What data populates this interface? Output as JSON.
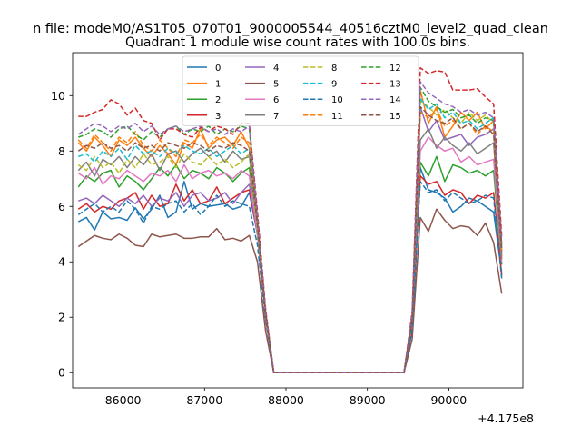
{
  "header": {
    "suptitle": "n file: modeM0/AS1T05_070T01_9000005544_40516cztM0_level2_quad_clean",
    "title": "Quadrant 1 module wise count rates with 100.0s bins."
  },
  "chart_data": {
    "type": "line",
    "title": "Quadrant 1 module wise count rates with 100.0s bins.",
    "xlabel": "",
    "ylabel": "",
    "x_offset_label": "+4.175e8",
    "xlim": [
      85380,
      90910
    ],
    "ylim": [
      -0.55,
      11.55
    ],
    "x_ticks": [
      86000,
      87000,
      88000,
      89000,
      90000
    ],
    "x_tick_labels": [
      "86000",
      "87000",
      "88000",
      "89000",
      "90000"
    ],
    "y_ticks": [
      0,
      2,
      4,
      6,
      8,
      10
    ],
    "y_tick_labels": [
      "0",
      "2",
      "4",
      "6",
      "8",
      "10"
    ],
    "grid": false,
    "legend": {
      "position": "top-center",
      "columns": 4
    },
    "x": [
      85450,
      85550,
      85650,
      85750,
      85850,
      85950,
      86050,
      86150,
      86250,
      86350,
      86450,
      86550,
      86650,
      86750,
      86850,
      86950,
      87050,
      87150,
      87250,
      87350,
      87450,
      87550,
      87650,
      87750,
      87850,
      87950,
      88050,
      88150,
      88250,
      88350,
      88450,
      88550,
      88650,
      88750,
      88850,
      88950,
      89050,
      89150,
      89250,
      89350,
      89450,
      89550,
      89650,
      89750,
      89850,
      89950,
      90050,
      90150,
      90250,
      90350,
      90450,
      90550,
      90650
    ],
    "series": [
      {
        "name": "0",
        "color": "#1f77b4",
        "dash": "solid",
        "values": [
          5.45,
          5.6,
          5.15,
          5.8,
          5.55,
          5.6,
          5.5,
          5.95,
          5.55,
          5.9,
          6.4,
          5.6,
          5.8,
          6.9,
          5.9,
          6.1,
          6.0,
          6.05,
          6.1,
          5.9,
          6.0,
          6.5,
          5.0,
          2.0,
          0.0,
          0,
          0,
          0,
          0,
          0,
          0,
          0,
          0,
          0,
          0,
          0,
          0,
          0,
          0,
          0,
          0,
          1.5,
          7.4,
          6.6,
          6.5,
          6.3,
          5.8,
          6.0,
          6.3,
          6.2,
          6.0,
          5.8,
          3.6
        ]
      },
      {
        "name": "1",
        "color": "#ff7f0e",
        "dash": "solid",
        "values": [
          8.3,
          8.0,
          8.5,
          8.2,
          7.8,
          8.4,
          8.2,
          8.5,
          8.1,
          7.8,
          8.2,
          7.9,
          7.5,
          8.3,
          8.1,
          8.8,
          8.1,
          8.4,
          8.5,
          8.2,
          8.7,
          8.1,
          5.0,
          2.0,
          0.0,
          0,
          0,
          0,
          0,
          0,
          0,
          0,
          0,
          0,
          0,
          0,
          0,
          0,
          0,
          0,
          0,
          2.0,
          10.2,
          9.0,
          9.6,
          8.5,
          8.9,
          9.4,
          9.1,
          9.4,
          8.8,
          9.1,
          4.2
        ]
      },
      {
        "name": "2",
        "color": "#2ca02c",
        "dash": "solid",
        "values": [
          6.7,
          7.1,
          6.9,
          7.2,
          7.3,
          6.7,
          7.1,
          6.9,
          6.6,
          7.0,
          7.4,
          7.1,
          7.5,
          7.0,
          7.3,
          7.2,
          7.0,
          7.4,
          7.2,
          6.9,
          7.2,
          7.4,
          5.0,
          2.0,
          0.0,
          0,
          0,
          0,
          0,
          0,
          0,
          0,
          0,
          0,
          0,
          0,
          0,
          0,
          0,
          0,
          0,
          1.8,
          7.6,
          7.1,
          7.8,
          6.9,
          7.5,
          7.4,
          7.2,
          7.3,
          7.1,
          7.3,
          3.9
        ]
      },
      {
        "name": "3",
        "color": "#d62728",
        "dash": "solid",
        "values": [
          5.9,
          6.1,
          5.8,
          6.0,
          5.9,
          6.2,
          6.3,
          6.5,
          5.9,
          6.4,
          6.0,
          6.1,
          6.8,
          6.2,
          6.6,
          6.1,
          6.2,
          6.7,
          6.1,
          6.3,
          6.5,
          6.6,
          5.0,
          2.0,
          0.0,
          0,
          0,
          0,
          0,
          0,
          0,
          0,
          0,
          0,
          0,
          0,
          0,
          0,
          0,
          0,
          0,
          1.6,
          7.1,
          6.8,
          6.9,
          6.4,
          6.6,
          6.5,
          6.1,
          6.4,
          6.3,
          6.5,
          3.5
        ]
      },
      {
        "name": "4",
        "color": "#9467bd",
        "dash": "solid",
        "values": [
          6.2,
          6.3,
          6.1,
          6.4,
          6.2,
          6.0,
          6.3,
          6.1,
          6.4,
          6.0,
          6.3,
          6.2,
          6.5,
          6.0,
          6.4,
          6.5,
          6.2,
          6.3,
          6.5,
          6.1,
          6.5,
          6.8,
          5.0,
          2.0,
          0.0,
          0,
          0,
          0,
          0,
          0,
          0,
          0,
          0,
          0,
          0,
          0,
          0,
          0,
          0,
          0,
          0,
          1.8,
          9.6,
          8.7,
          9.1,
          8.4,
          8.5,
          8.6,
          8.2,
          8.5,
          8.6,
          8.8,
          4.3
        ]
      },
      {
        "name": "5",
        "color": "#8c564b",
        "dash": "solid",
        "values": [
          4.55,
          4.75,
          4.95,
          4.85,
          4.8,
          5.0,
          4.85,
          4.6,
          4.55,
          5.0,
          4.9,
          4.95,
          5.0,
          4.85,
          4.85,
          4.9,
          4.9,
          5.2,
          4.8,
          4.85,
          4.75,
          4.95,
          4.0,
          1.5,
          0.0,
          0,
          0,
          0,
          0,
          0,
          0,
          0,
          0,
          0,
          0,
          0,
          0,
          0,
          0,
          0,
          0,
          1.2,
          5.6,
          5.1,
          5.9,
          5.5,
          5.2,
          5.3,
          5.25,
          4.95,
          5.4,
          4.7,
          2.85
        ]
      },
      {
        "name": "6",
        "color": "#e377c2",
        "dash": "solid",
        "values": [
          7.2,
          7.0,
          7.4,
          6.8,
          7.1,
          7.0,
          7.3,
          7.1,
          6.9,
          7.2,
          7.1,
          7.3,
          6.9,
          7.5,
          7.0,
          7.2,
          7.3,
          7.1,
          7.2,
          7.0,
          7.3,
          7.1,
          5.0,
          2.0,
          0.0,
          0,
          0,
          0,
          0,
          0,
          0,
          0,
          0,
          0,
          0,
          0,
          0,
          0,
          0,
          0,
          0,
          1.7,
          8.0,
          8.5,
          8.2,
          8.0,
          8.1,
          7.6,
          7.8,
          7.5,
          7.6,
          7.7,
          4.0
        ]
      },
      {
        "name": "7",
        "color": "#7f7f7f",
        "dash": "solid",
        "values": [
          7.3,
          7.6,
          7.1,
          7.7,
          7.5,
          7.8,
          7.4,
          7.8,
          7.5,
          7.9,
          7.3,
          7.9,
          8.0,
          7.6,
          7.9,
          8.1,
          7.8,
          8.0,
          7.6,
          8.0,
          7.7,
          7.8,
          5.2,
          2.0,
          0.0,
          0,
          0,
          0,
          0,
          0,
          0,
          0,
          0,
          0,
          0,
          0,
          0,
          0,
          0,
          0,
          0,
          1.8,
          8.4,
          8.8,
          8.1,
          8.5,
          8.2,
          8.0,
          8.3,
          7.9,
          8.1,
          8.3,
          4.1
        ]
      },
      {
        "name": "8",
        "color": "#bcbd22",
        "dash": "dashed",
        "values": [
          7.5,
          7.3,
          7.8,
          7.4,
          7.6,
          7.2,
          7.7,
          7.4,
          7.9,
          7.5,
          7.6,
          7.8,
          7.4,
          7.9,
          7.6,
          7.5,
          7.8,
          7.5,
          7.7,
          7.4,
          7.6,
          7.9,
          5.1,
          2.0,
          0.0,
          0,
          0,
          0,
          0,
          0,
          0,
          0,
          0,
          0,
          0,
          0,
          0,
          0,
          0,
          0,
          0,
          1.8,
          9.8,
          9.6,
          9.3,
          9.5,
          9.2,
          9.0,
          9.4,
          9.1,
          9.3,
          9.0,
          4.6
        ]
      },
      {
        "name": "9",
        "color": "#17becf",
        "dash": "dashed",
        "values": [
          7.8,
          7.9,
          7.6,
          8.0,
          7.8,
          8.1,
          7.7,
          8.2,
          7.9,
          8.0,
          7.8,
          8.1,
          7.9,
          8.2,
          8.0,
          7.9,
          8.1,
          7.8,
          8.0,
          8.2,
          7.9,
          8.1,
          5.2,
          2.1,
          0.0,
          0,
          0,
          0,
          0,
          0,
          0,
          0,
          0,
          0,
          0,
          0,
          0,
          0,
          0,
          0,
          0,
          1.9,
          9.9,
          9.5,
          9.7,
          9.2,
          9.4,
          9.0,
          9.1,
          8.8,
          9.0,
          9.2,
          4.5
        ]
      },
      {
        "name": "10",
        "color": "#1f77b4",
        "dash": "dashed",
        "values": [
          5.7,
          5.9,
          6.1,
          5.8,
          6.0,
          5.8,
          6.2,
          5.9,
          5.4,
          6.0,
          5.9,
          6.1,
          6.2,
          5.8,
          6.1,
          5.7,
          6.0,
          6.4,
          6.0,
          6.2,
          6.1,
          6.0,
          4.6,
          1.9,
          0.0,
          0,
          0,
          0,
          0,
          0,
          0,
          0,
          0,
          0,
          0,
          0,
          0,
          0,
          0,
          0,
          0,
          1.6,
          6.9,
          6.5,
          6.6,
          6.2,
          6.5,
          6.3,
          6.1,
          6.2,
          6.4,
          6.3,
          3.4
        ]
      },
      {
        "name": "11",
        "color": "#ff7f0e",
        "dash": "dashed",
        "values": [
          8.4,
          8.1,
          8.6,
          8.3,
          8.0,
          8.5,
          8.3,
          8.7,
          8.2,
          8.0,
          8.4,
          8.1,
          7.8,
          8.4,
          8.3,
          8.6,
          8.2,
          8.5,
          8.3,
          8.1,
          8.5,
          8.3,
          5.3,
          2.1,
          0.0,
          0,
          0,
          0,
          0,
          0,
          0,
          0,
          0,
          0,
          0,
          0,
          0,
          0,
          0,
          0,
          0,
          2.0,
          9.4,
          9.2,
          9.5,
          8.9,
          9.1,
          8.8,
          9.0,
          8.6,
          8.9,
          8.7,
          4.4
        ]
      },
      {
        "name": "12",
        "color": "#2ca02c",
        "dash": "dashed",
        "values": [
          8.5,
          8.6,
          8.8,
          8.7,
          8.5,
          8.8,
          8.9,
          8.6,
          8.4,
          8.7,
          8.5,
          8.8,
          8.9,
          8.6,
          8.8,
          8.7,
          8.9,
          8.6,
          8.8,
          8.7,
          8.9,
          8.8,
          5.5,
          2.2,
          0.0,
          0,
          0,
          0,
          0,
          0,
          0,
          0,
          0,
          0,
          0,
          0,
          0,
          0,
          0,
          0,
          0,
          2.0,
          10.3,
          9.8,
          9.6,
          9.4,
          9.5,
          9.2,
          9.3,
          9.0,
          9.2,
          9.1,
          4.6
        ]
      },
      {
        "name": "13",
        "color": "#d62728",
        "dash": "dashed",
        "values": [
          9.25,
          9.25,
          9.4,
          9.5,
          9.85,
          9.7,
          9.3,
          9.55,
          9.1,
          9.0,
          8.4,
          8.8,
          8.8,
          8.6,
          8.5,
          8.85,
          8.7,
          8.9,
          8.8,
          8.6,
          9.0,
          9.0,
          5.8,
          2.3,
          0.0,
          0,
          0,
          0,
          0,
          0,
          0,
          0,
          0,
          0,
          0,
          0,
          0,
          0,
          0,
          0,
          0,
          2.2,
          11.0,
          10.8,
          10.9,
          10.85,
          10.2,
          10.2,
          10.2,
          10.25,
          9.95,
          9.7,
          4.9
        ]
      },
      {
        "name": "14",
        "color": "#9467bd",
        "dash": "dashed",
        "values": [
          8.6,
          8.8,
          9.0,
          8.9,
          8.7,
          8.9,
          8.8,
          9.0,
          8.7,
          8.9,
          8.6,
          8.8,
          8.9,
          8.7,
          8.8,
          8.9,
          8.7,
          8.8,
          8.6,
          8.8,
          8.7,
          8.9,
          5.6,
          2.2,
          0.0,
          0,
          0,
          0,
          0,
          0,
          0,
          0,
          0,
          0,
          0,
          0,
          0,
          0,
          0,
          0,
          0,
          2.1,
          10.5,
          10.1,
          9.9,
          9.7,
          9.6,
          9.4,
          9.5,
          9.3,
          9.4,
          9.2,
          4.7
        ]
      },
      {
        "name": "15",
        "color": "#8c564b",
        "dash": "dashed",
        "values": [
          8.0,
          8.2,
          8.1,
          8.3,
          8.1,
          8.2,
          8.0,
          8.3,
          8.1,
          8.2,
          8.0,
          8.3,
          8.2,
          8.1,
          8.3,
          8.2,
          8.0,
          8.2,
          8.1,
          8.3,
          8.2,
          8.0,
          5.3,
          2.1,
          0.0,
          0,
          0,
          0,
          0,
          0,
          0,
          0,
          0,
          0,
          0,
          0,
          0,
          0,
          0,
          0,
          0,
          1.9,
          9.6,
          9.3,
          9.1,
          9.0,
          9.2,
          8.8,
          9.0,
          8.7,
          8.9,
          8.6,
          4.4
        ]
      }
    ]
  }
}
